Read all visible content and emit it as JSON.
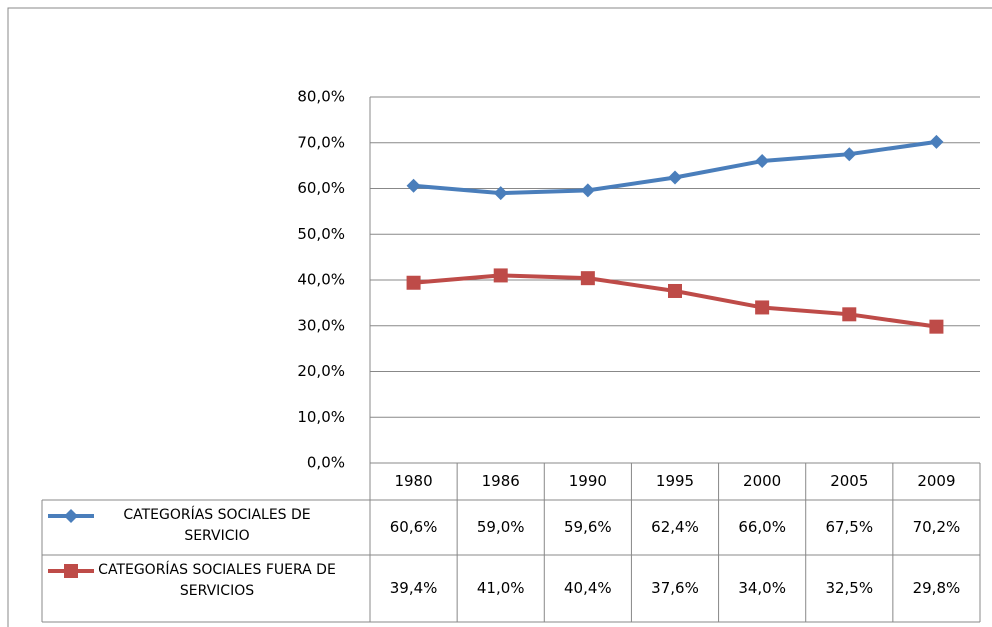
{
  "chart_data": {
    "type": "line",
    "categories": [
      "1980",
      "1986",
      "1990",
      "1995",
      "2000",
      "2005",
      "2009"
    ],
    "series": [
      {
        "name": "CATEGORÍAS SOCIALES DE SERVICIO",
        "color": "#4a7ebb",
        "marker": "diamond",
        "values": [
          60.6,
          59.0,
          59.6,
          62.4,
          66.0,
          67.5,
          70.2
        ],
        "value_labels": [
          "60,6%",
          "59,0%",
          "59,6%",
          "62,4%",
          "66,0%",
          "67,5%",
          "70,2%"
        ]
      },
      {
        "name": "CATEGORÍAS SOCIALES FUERA DE SERVICIOS",
        "color": "#be4b48",
        "marker": "square",
        "values": [
          39.4,
          41.0,
          40.4,
          37.6,
          34.0,
          32.5,
          29.8
        ],
        "value_labels": [
          "39,4%",
          "41,0%",
          "40,4%",
          "37,6%",
          "34,0%",
          "32,5%",
          "29,8%"
        ]
      }
    ],
    "ylim": [
      0,
      80
    ],
    "yticks": [
      {
        "value": 0,
        "label": "0,0%"
      },
      {
        "value": 10,
        "label": "10,0%"
      },
      {
        "value": 20,
        "label": "20,0%"
      },
      {
        "value": 30,
        "label": "30,0%"
      },
      {
        "value": 40,
        "label": "40,0%"
      },
      {
        "value": 50,
        "label": "50,0%"
      },
      {
        "value": 60,
        "label": "60,0%"
      },
      {
        "value": 70,
        "label": "70,0%"
      },
      {
        "value": 80,
        "label": "80,0%"
      }
    ],
    "grid": true
  }
}
